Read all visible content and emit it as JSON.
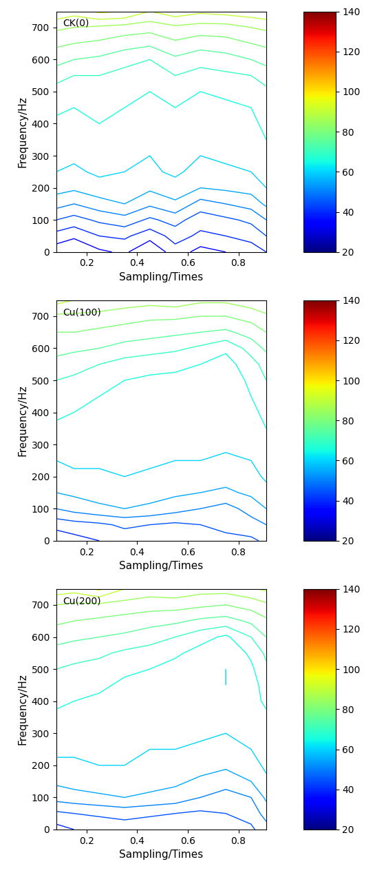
{
  "chart_data": [
    {
      "type": "contour",
      "annotation": "CK(0)",
      "xlabel": "Sampling/Times",
      "ylabel": "Frequency/Hz",
      "xlim": [
        0.08,
        0.91
      ],
      "ylim": [
        0,
        750
      ],
      "xticks": [
        0.2,
        0.4,
        0.6,
        0.8
      ],
      "yticks": [
        0,
        100,
        200,
        300,
        400,
        500,
        600,
        700
      ],
      "x": [
        0.08,
        0.15,
        0.25,
        0.35,
        0.45,
        0.55,
        0.65,
        0.75,
        0.85,
        0.91
      ],
      "y": [
        0,
        50,
        100,
        150,
        200,
        250,
        300,
        350,
        400,
        450,
        500,
        550,
        600,
        650,
        700,
        750
      ],
      "cells": [
        [
          32,
          30,
          34,
          36,
          30,
          38,
          33,
          35,
          37,
          40
        ],
        [
          38,
          36,
          40,
          41,
          37,
          42,
          39,
          40,
          42,
          45
        ],
        [
          45,
          43,
          46,
          48,
          44,
          47,
          42,
          44,
          46,
          50
        ],
        [
          52,
          50,
          53,
          55,
          51,
          54,
          48,
          50,
          52,
          56
        ],
        [
          57,
          56,
          58,
          59,
          56,
          58,
          55,
          56,
          57,
          60
        ],
        [
          60,
          59,
          61,
          60,
          59,
          61,
          58,
          59,
          60,
          62
        ],
        [
          62,
          61,
          63,
          62,
          60,
          62,
          60,
          61,
          62,
          64
        ],
        [
          63,
          62,
          64,
          63,
          62,
          63,
          62,
          62,
          63,
          65
        ],
        [
          64,
          64,
          65,
          64,
          63,
          64,
          63,
          63,
          64,
          66
        ],
        [
          66,
          65,
          66,
          65,
          64,
          65,
          64,
          64,
          65,
          67
        ],
        [
          68,
          67,
          67,
          66,
          65,
          67,
          65,
          66,
          67,
          69
        ],
        [
          72,
          70,
          70,
          68,
          67,
          70,
          68,
          69,
          70,
          72
        ],
        [
          77,
          75,
          74,
          72,
          70,
          74,
          72,
          73,
          75,
          77
        ],
        [
          81,
          80,
          79,
          77,
          76,
          79,
          77,
          78,
          80,
          81
        ],
        [
          86,
          85,
          84,
          83,
          82,
          84,
          83,
          83,
          85,
          86
        ],
        [
          94,
          92,
          96,
          95,
          90,
          93,
          91,
          92,
          93,
          94
        ]
      ],
      "levels": [
        20,
        25,
        30,
        35,
        40,
        45,
        50,
        55,
        60,
        65,
        70,
        75,
        80,
        85,
        90,
        95,
        100,
        105,
        110,
        115,
        120,
        125,
        130,
        135,
        140
      ],
      "colorbar_range": [
        20,
        140
      ],
      "colorbar_ticks": [
        20,
        40,
        60,
        80,
        100,
        120,
        140
      ]
    },
    {
      "type": "contour",
      "annotation": "Cu(100)",
      "xlabel": "Sampling/Times",
      "ylabel": "Frequency/Hz",
      "xlim": [
        0.08,
        0.91
      ],
      "ylim": [
        0,
        750
      ],
      "xticks": [
        0.2,
        0.4,
        0.6,
        0.8
      ],
      "yticks": [
        0,
        100,
        200,
        300,
        400,
        500,
        600,
        700
      ],
      "x": [
        0.08,
        0.15,
        0.25,
        0.35,
        0.45,
        0.55,
        0.65,
        0.75,
        0.85,
        0.91
      ],
      "y": [
        0,
        50,
        100,
        150,
        200,
        250,
        300,
        350,
        400,
        450,
        500,
        550,
        600,
        650,
        700,
        750
      ],
      "cells": [
        [
          36,
          38,
          40,
          42,
          40,
          41,
          42,
          43,
          44,
          46
        ],
        [
          42,
          43,
          44,
          46,
          45,
          44,
          45,
          47,
          48,
          50
        ],
        [
          50,
          52,
          54,
          55,
          54,
          52,
          50,
          48,
          52,
          55
        ],
        [
          55,
          56,
          57,
          58,
          57,
          56,
          55,
          54,
          56,
          58
        ],
        [
          58,
          59,
          59,
          60,
          59,
          58,
          58,
          57,
          58,
          61
        ],
        [
          60,
          61,
          61,
          62,
          61,
          60,
          60,
          59,
          60,
          62
        ],
        [
          62,
          62,
          63,
          63,
          62,
          62,
          61,
          61,
          62,
          64
        ],
        [
          64,
          63,
          64,
          62,
          62,
          63,
          62,
          62,
          63,
          65
        ],
        [
          66,
          65,
          64,
          62,
          61,
          63,
          63,
          63,
          64,
          66
        ],
        [
          68,
          67,
          65,
          63,
          62,
          63,
          64,
          62,
          65,
          68
        ],
        [
          70,
          69,
          67,
          65,
          64,
          64,
          63,
          62,
          66,
          70
        ],
        [
          73,
          72,
          70,
          68,
          67,
          66,
          65,
          63,
          68,
          72
        ],
        [
          77,
          76,
          75,
          73,
          72,
          71,
          69,
          66,
          72,
          76
        ],
        [
          80,
          80,
          79,
          78,
          77,
          76,
          75,
          74,
          77,
          80
        ],
        [
          84,
          84,
          83,
          82,
          81,
          81,
          80,
          80,
          82,
          84
        ],
        [
          92,
          90,
          90,
          88,
          87,
          88,
          86,
          86,
          88,
          90
        ]
      ],
      "levels": [
        20,
        25,
        30,
        35,
        40,
        45,
        50,
        55,
        60,
        65,
        70,
        75,
        80,
        85,
        90,
        95,
        100,
        105,
        110,
        115,
        120,
        125,
        130,
        135,
        140
      ],
      "colorbar_range": [
        20,
        140
      ],
      "colorbar_ticks": [
        20,
        40,
        60,
        80,
        100,
        120,
        140
      ]
    },
    {
      "type": "contour",
      "annotation": "Cu(200)",
      "xlabel": "Sampling/Times",
      "ylabel": "Frequency/Hz",
      "xlim": [
        0.08,
        0.91
      ],
      "ylim": [
        0,
        750
      ],
      "xticks": [
        0.2,
        0.4,
        0.6,
        0.8
      ],
      "yticks": [
        0,
        100,
        200,
        300,
        400,
        500,
        600,
        700
      ],
      "x": [
        0.08,
        0.15,
        0.25,
        0.35,
        0.45,
        0.55,
        0.65,
        0.75,
        0.85,
        0.91
      ],
      "y": [
        0,
        50,
        100,
        150,
        200,
        250,
        300,
        350,
        400,
        450,
        500,
        550,
        600,
        650,
        700,
        750
      ],
      "cells": [
        [
          38,
          40,
          41,
          42,
          41,
          42,
          43,
          42,
          44,
          48
        ],
        [
          44,
          45,
          46,
          47,
          46,
          45,
          44,
          45,
          47,
          52
        ],
        [
          52,
          53,
          54,
          55,
          54,
          53,
          50,
          48,
          50,
          56
        ],
        [
          56,
          57,
          58,
          58,
          57,
          56,
          54,
          52,
          55,
          59
        ],
        [
          59,
          59,
          60,
          60,
          59,
          58,
          57,
          56,
          58,
          61
        ],
        [
          61,
          61,
          61,
          61,
          60,
          60,
          59,
          58,
          60,
          62
        ],
        [
          63,
          62,
          62,
          62,
          61,
          61,
          61,
          60,
          61,
          63
        ],
        [
          64,
          63,
          63,
          62,
          62,
          62,
          62,
          61,
          62,
          64
        ],
        [
          66,
          65,
          64,
          63,
          62,
          62,
          62,
          61,
          63,
          66
        ],
        [
          68,
          67,
          66,
          64,
          63,
          62,
          61,
          60,
          63,
          67
        ],
        [
          70,
          69,
          68,
          66,
          65,
          63,
          61,
          60,
          64,
          69
        ],
        [
          73,
          72,
          71,
          69,
          68,
          66,
          63,
          61,
          66,
          71
        ],
        [
          77,
          76,
          75,
          74,
          72,
          70,
          67,
          64,
          70,
          75
        ],
        [
          81,
          80,
          79,
          78,
          77,
          76,
          74,
          73,
          76,
          79
        ],
        [
          85,
          84,
          84,
          83,
          82,
          82,
          81,
          80,
          82,
          84
        ],
        [
          93,
          92,
          96,
          90,
          88,
          89,
          87,
          87,
          89,
          91
        ]
      ],
      "levels": [
        20,
        25,
        30,
        35,
        40,
        45,
        50,
        55,
        60,
        65,
        70,
        75,
        80,
        85,
        90,
        95,
        100,
        105,
        110,
        115,
        120,
        125,
        130,
        135,
        140
      ],
      "colorbar_range": [
        20,
        140
      ],
      "colorbar_ticks": [
        20,
        40,
        60,
        80,
        100,
        120,
        140
      ]
    }
  ]
}
